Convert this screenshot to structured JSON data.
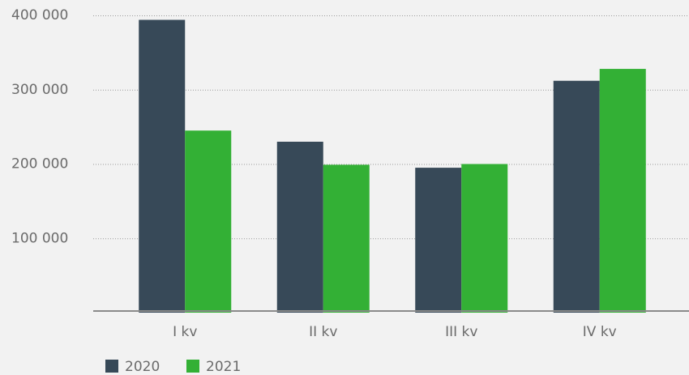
{
  "chart_data": {
    "type": "bar",
    "categories": [
      "I kv",
      "II kv",
      "III kv",
      "IV kv"
    ],
    "series": [
      {
        "name": "2020",
        "color": "#374958",
        "values": [
          394000,
          230000,
          195000,
          312000
        ]
      },
      {
        "name": "2021",
        "color": "#33b035",
        "values": [
          245000,
          199000,
          200000,
          328000
        ]
      }
    ],
    "ylim": [
      0,
      400000
    ],
    "yticks": [
      {
        "value": 100000,
        "label": "100 000"
      },
      {
        "value": 200000,
        "label": "200 000"
      },
      {
        "value": 300000,
        "label": "300 000"
      },
      {
        "value": 400000,
        "label": "400 000"
      }
    ],
    "grid": true,
    "legend": "bottom-left"
  }
}
